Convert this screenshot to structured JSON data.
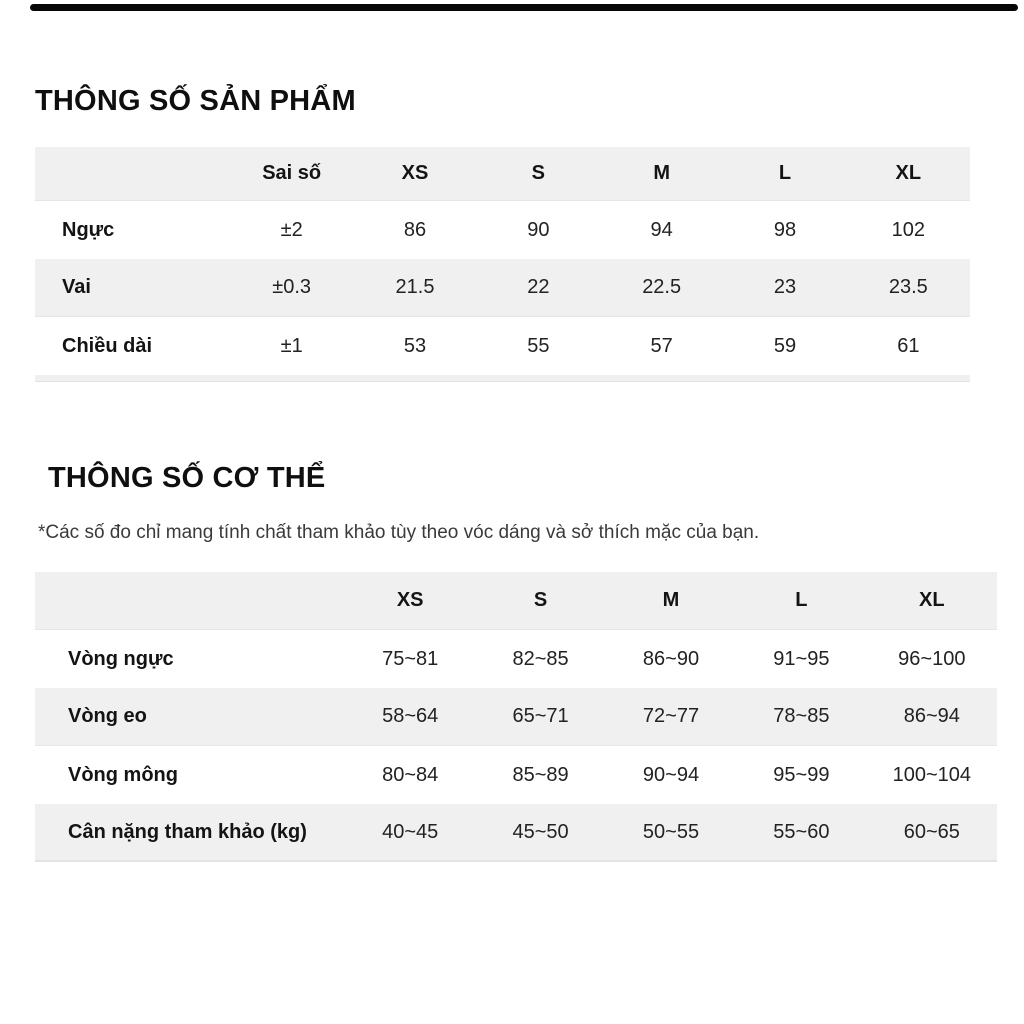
{
  "page": {
    "background": "#ffffff",
    "stripe_gray": "#f0f0f0",
    "divider_color": "#070707",
    "text_color": "#161616",
    "note_color": "#3a3a3a"
  },
  "product_section": {
    "title": "THÔNG SỐ SẢN PHẨM",
    "table": {
      "columns": [
        "",
        "Sai số",
        "XS",
        "S",
        "M",
        "L",
        "XL"
      ],
      "rows": [
        {
          "label": "Ngực",
          "values": [
            "±2",
            "86",
            "90",
            "94",
            "98",
            "102"
          ]
        },
        {
          "label": "Vai",
          "values": [
            "±0.3",
            "21.5",
            "22",
            "22.5",
            "23",
            "23.5"
          ]
        },
        {
          "label": "Chiều dài",
          "values": [
            "±1",
            "53",
            "55",
            "57",
            "59",
            "61"
          ]
        }
      ]
    }
  },
  "body_section": {
    "title": "THÔNG SỐ CƠ THỂ",
    "note": "*Các số đo chỉ mang tính chất tham khảo tùy theo vóc dáng và sở thích mặc của bạn.",
    "table": {
      "columns": [
        "",
        "XS",
        "S",
        "M",
        "L",
        "XL"
      ],
      "rows": [
        {
          "label": "Vòng ngực",
          "values": [
            "75~81",
            "82~85",
            "86~90",
            "91~95",
            "96~100"
          ]
        },
        {
          "label": "Vòng eo",
          "values": [
            "58~64",
            "65~71",
            "72~77",
            "78~85",
            "86~94"
          ]
        },
        {
          "label": "Vòng mông",
          "values": [
            "80~84",
            "85~89",
            "90~94",
            "95~99",
            "100~104"
          ]
        },
        {
          "label": "Cân nặng tham khảo (kg)",
          "values": [
            "40~45",
            "45~50",
            "50~55",
            "55~60",
            "60~65"
          ]
        }
      ]
    }
  }
}
